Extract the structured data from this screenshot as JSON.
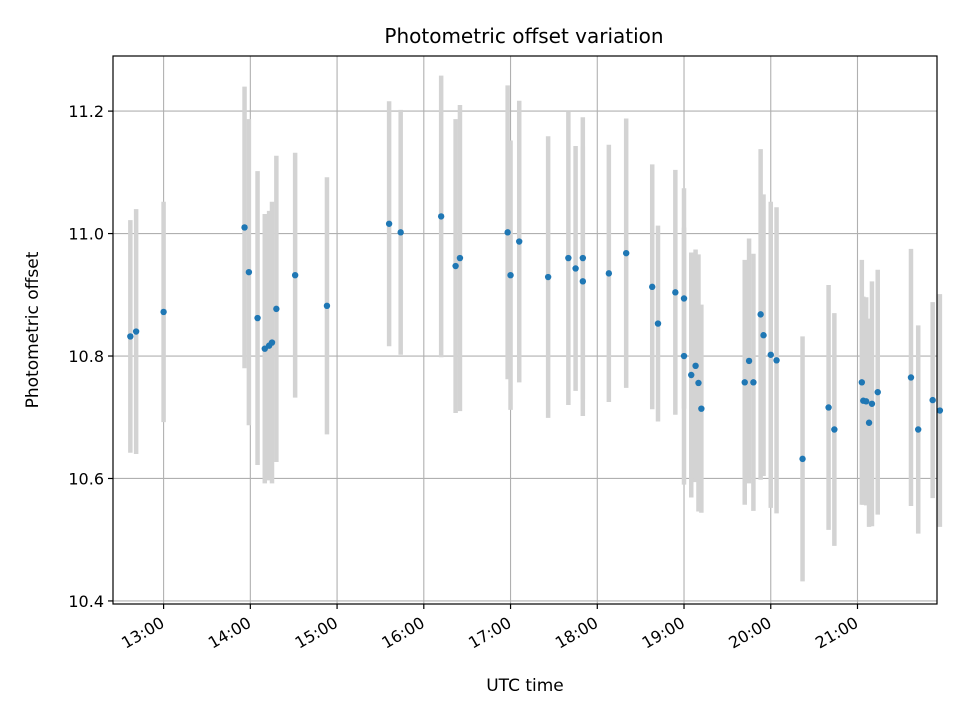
{
  "chart_data": {
    "type": "scatter",
    "title": "Photometric offset variation",
    "xlabel": "UTC time",
    "ylabel": "Photometric offset",
    "x_ticks": [
      "13:00",
      "14:00",
      "15:00",
      "16:00",
      "17:00",
      "18:00",
      "19:00",
      "20:00",
      "21:00"
    ],
    "y_ticks": [
      "10.4",
      "10.6",
      "10.8",
      "11.0",
      "11.2"
    ],
    "xlim": [
      "12:25",
      "21:55"
    ],
    "ylim": [
      10.395,
      11.29
    ],
    "grid": true,
    "marker_color": "#1f77b4",
    "errorbar_color": "#d3d3d3",
    "series": [
      {
        "x": [
          "12:37",
          "12:41",
          "13:00",
          "13:56",
          "13:59",
          "14:05",
          "14:10",
          "14:13",
          "14:15",
          "14:18",
          "14:31",
          "14:53",
          "15:36",
          "15:44",
          "16:12",
          "16:22",
          "16:25",
          "16:58",
          "17:00",
          "17:06",
          "17:26",
          "17:40",
          "17:45",
          "17:50",
          "17:50",
          "18:08",
          "18:20",
          "18:38",
          "18:42",
          "18:54",
          "19:00",
          "19:00",
          "19:05",
          "19:08",
          "19:10",
          "19:12",
          "19:42",
          "19:45",
          "19:48",
          "19:53",
          "19:55",
          "20:00",
          "20:04",
          "20:22",
          "20:40",
          "20:44",
          "21:03",
          "21:08",
          "21:10",
          "21:14",
          "21:37",
          "21:52"
        ],
        "y": [
          10.832,
          10.84,
          10.872,
          11.01,
          10.937,
          10.862,
          10.812,
          10.817,
          10.822,
          10.877,
          10.932,
          10.882,
          11.016,
          11.002,
          11.028,
          10.947,
          10.96,
          11.002,
          10.932,
          10.987,
          10.929,
          10.96,
          10.943,
          10.922,
          10.96,
          10.935,
          10.968,
          10.913,
          10.853,
          10.904,
          10.894,
          10.8,
          10.769,
          10.784,
          10.756,
          10.714,
          10.757,
          10.792,
          10.757,
          10.868,
          10.834,
          10.802,
          10.793,
          10.632,
          10.716,
          10.68,
          10.757,
          10.691,
          10.722,
          10.741,
          10.765,
          10.728
        ],
        "err": [
          0.19,
          0.2,
          0.18,
          0.23,
          0.25,
          0.24,
          0.22,
          0.22,
          0.23,
          0.25,
          0.2,
          0.21,
          0.2,
          0.2,
          0.23,
          0.24,
          0.25,
          0.24,
          0.22,
          0.23,
          0.23,
          0.24,
          0.2,
          0.22,
          0.23,
          0.21,
          0.22,
          0.2,
          0.16,
          0.2,
          0.18,
          0.21,
          0.2,
          0.19,
          0.21,
          0.17,
          0.2,
          0.2,
          0.21,
          0.27,
          0.23,
          0.25,
          0.25,
          0.2,
          0.2,
          0.19,
          0.2,
          0.17,
          0.2,
          0.2,
          0.21,
          0.16
        ]
      }
    ],
    "extra_points": {
      "x": [
        "21:04",
        "21:06",
        "21:42",
        "21:57"
      ],
      "y": [
        10.727,
        10.726,
        10.68,
        10.711
      ],
      "err": [
        0.17,
        0.17,
        0.17,
        0.19
      ]
    }
  }
}
